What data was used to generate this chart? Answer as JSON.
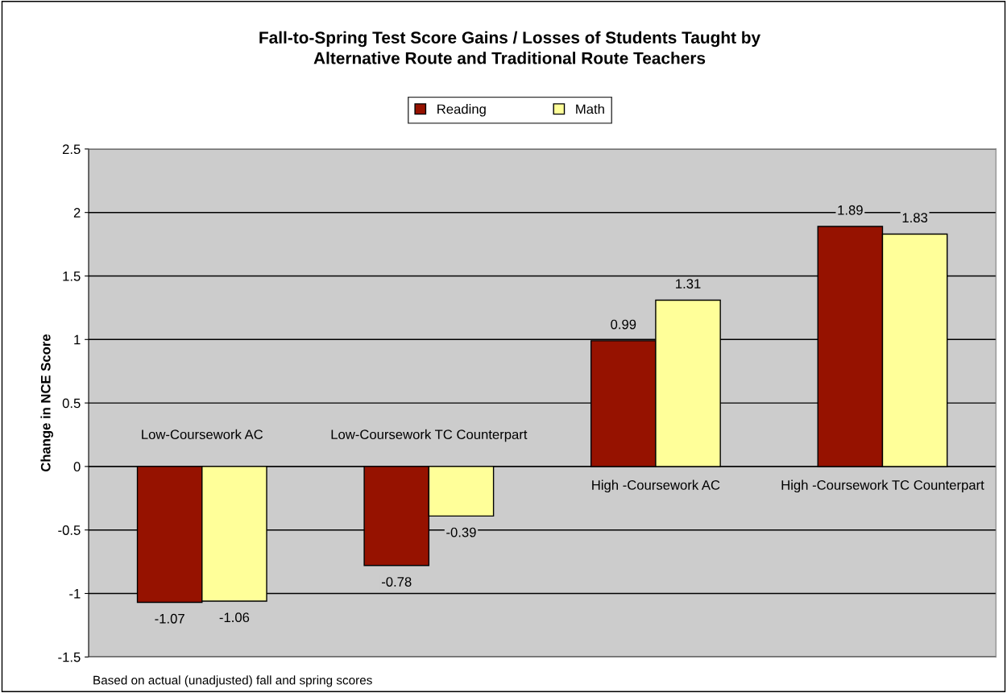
{
  "chart_data": {
    "type": "bar",
    "title": "Fall-to-Spring Test Score Gains / Losses of Students Taught by\nAlternative Route and Traditional Route Teachers",
    "ylabel": "Change in NCE Score",
    "categories": [
      "Low-Coursework AC",
      "Low-Coursework TC Counterpart",
      "High -Coursework AC",
      "High -Coursework TC Counterpart"
    ],
    "series": [
      {
        "name": "Reading",
        "color": "#961200",
        "values": [
          -1.07,
          -0.78,
          0.99,
          1.89
        ]
      },
      {
        "name": "Math",
        "color": "#ffff99",
        "values": [
          -1.06,
          -0.39,
          1.31,
          1.83
        ]
      }
    ],
    "ylim": [
      -1.5,
      2.5
    ],
    "yticks": [
      -1.5,
      -1,
      -0.5,
      0,
      0.5,
      1,
      1.5,
      2,
      2.5
    ],
    "grid": "y",
    "legend": "top",
    "data_labels": true,
    "annotations": [
      "Based on actual (unadjusted) fall and spring scores"
    ]
  }
}
